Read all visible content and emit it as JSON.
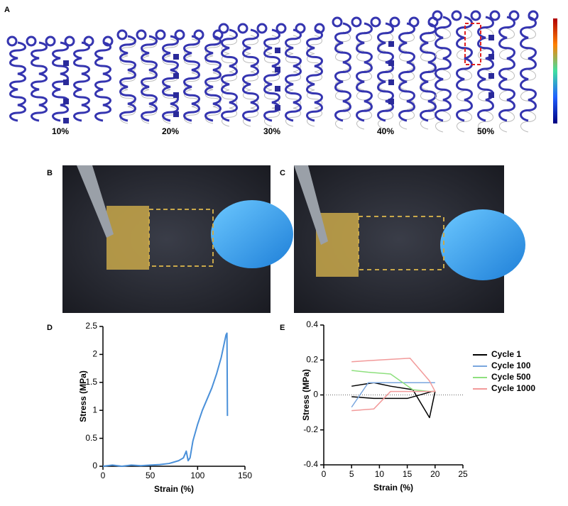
{
  "panel_labels": [
    "A",
    "B",
    "C",
    "D",
    "E"
  ],
  "panel_a": {
    "captions": [
      "10%",
      "20%",
      "30%",
      "40%",
      "50%"
    ]
  },
  "chart_data": [
    {
      "type": "line",
      "x_label": "Strain (%)",
      "y_label": "Stress (MPa)",
      "xlim": [
        0,
        150
      ],
      "xticks": [
        0,
        50,
        100,
        150
      ],
      "ylim": [
        0,
        2.5
      ],
      "yticks": [
        0,
        0.5,
        1,
        1.5,
        2,
        2.5
      ],
      "series": [
        {
          "color": "#4a90d9",
          "x": [
            0,
            10,
            20,
            30,
            40,
            50,
            60,
            70,
            80,
            85,
            88,
            90,
            92,
            95,
            100,
            105,
            110,
            115,
            120,
            125,
            130,
            131,
            131.5
          ],
          "values": [
            0,
            0.02,
            0,
            0.02,
            0.01,
            0.02,
            0.03,
            0.05,
            0.1,
            0.15,
            0.27,
            0.1,
            0.15,
            0.45,
            0.75,
            1.0,
            1.2,
            1.4,
            1.65,
            1.95,
            2.35,
            2.38,
            0.9
          ]
        }
      ]
    },
    {
      "type": "line",
      "x_label": "Strain (%)",
      "y_label": "Stress (MPa)",
      "xlim": [
        0,
        25
      ],
      "xticks": [
        0,
        5,
        10,
        15,
        20,
        25
      ],
      "ylim": [
        -0.4,
        0.4
      ],
      "yticks": [
        -0.4,
        -0.2,
        0,
        0.2,
        0.4
      ],
      "zero_line": true,
      "legend": "right",
      "series": [
        {
          "name": "Cycle 1",
          "color": "#000000",
          "x": [
            5,
            9,
            12,
            16,
            19,
            20,
            19.5,
            15,
            9,
            5
          ],
          "values": [
            0.05,
            0.07,
            0.05,
            0.03,
            -0.13,
            0.02,
            0.02,
            -0.02,
            -0.02,
            -0.01
          ]
        },
        {
          "name": "Cycle 100",
          "color": "#7aa6de",
          "x": [
            5,
            8,
            12,
            16,
            20
          ],
          "values": [
            -0.07,
            0.07,
            0.07,
            0.07,
            0.07
          ]
        },
        {
          "name": "Cycle 500",
          "color": "#8ee07e",
          "x": [
            5,
            8,
            12,
            16,
            19,
            20
          ],
          "values": [
            0.14,
            0.13,
            0.12,
            0.03,
            0.02,
            0.02
          ]
        },
        {
          "name": "Cycle 1000",
          "color": "#f29a9a",
          "x": [
            5,
            10,
            15.5,
            19,
            20,
            15,
            12,
            9,
            5
          ],
          "values": [
            0.19,
            0.2,
            0.21,
            0.08,
            0.02,
            0.02,
            0.02,
            -0.08,
            -0.09
          ]
        }
      ]
    }
  ]
}
